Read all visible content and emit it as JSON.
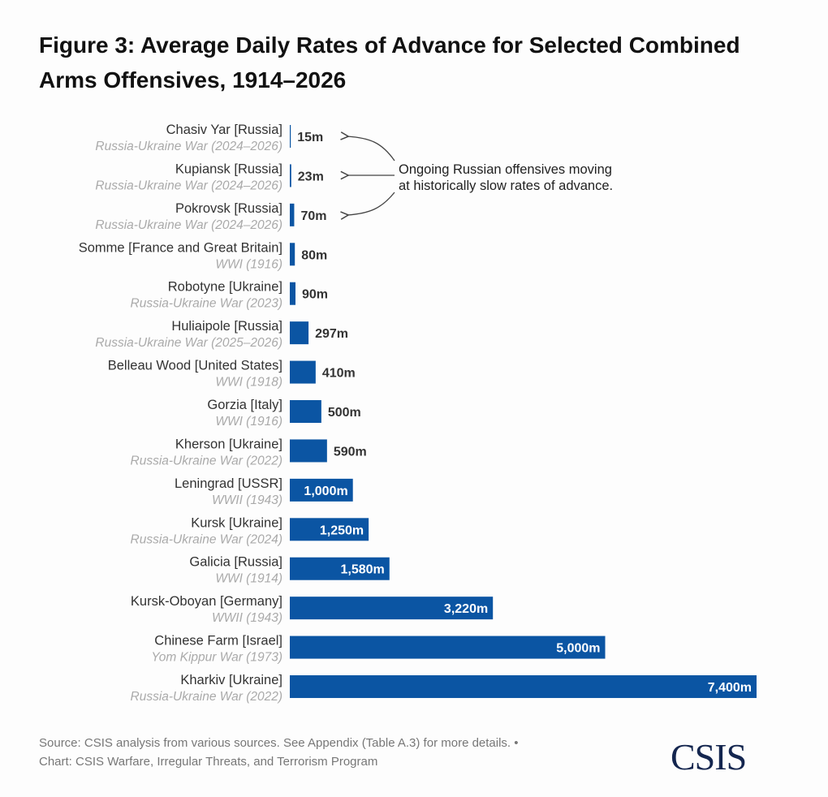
{
  "chart_data": {
    "type": "bar",
    "orientation": "horizontal",
    "title": "Figure 3: Average Daily Rates of Advance for Selected Combined Arms Offensives, 1914–2026",
    "unit": "m",
    "bar_color": "#0b55a3",
    "grid": false,
    "categories": [
      {
        "name": "Chasiv Yar [Russia]",
        "war": "Russia-Ukraine War (2024–2026)",
        "value": 15,
        "label": "15m"
      },
      {
        "name": "Kupiansk [Russia]",
        "war": "Russia-Ukraine War (2024–2026)",
        "value": 23,
        "label": "23m"
      },
      {
        "name": "Pokrovsk [Russia]",
        "war": "Russia-Ukraine War (2024–2026)",
        "value": 70,
        "label": "70m"
      },
      {
        "name": "Somme [France and Great Britain]",
        "war": "WWI (1916)",
        "value": 80,
        "label": "80m"
      },
      {
        "name": "Robotyne [Ukraine]",
        "war": "Russia-Ukraine War (2023)",
        "value": 90,
        "label": "90m"
      },
      {
        "name": "Huliaipole [Russia]",
        "war": "Russia-Ukraine War (2025–2026)",
        "value": 297,
        "label": "297m"
      },
      {
        "name": "Belleau Wood [United States]",
        "war": "WWI (1918)",
        "value": 410,
        "label": "410m"
      },
      {
        "name": "Gorzia [Italy]",
        "war": "WWI (1916)",
        "value": 500,
        "label": "500m"
      },
      {
        "name": "Kherson [Ukraine]",
        "war": "Russia-Ukraine War (2022)",
        "value": 590,
        "label": "590m"
      },
      {
        "name": "Leningrad [USSR]",
        "war": "WWII (1943)",
        "value": 1000,
        "label": "1,000m"
      },
      {
        "name": "Kursk [Ukraine]",
        "war": "Russia-Ukraine War (2024)",
        "value": 1250,
        "label": "1,250m"
      },
      {
        "name": "Galicia [Russia]",
        "war": "WWI (1914)",
        "value": 1580,
        "label": "1,580m"
      },
      {
        "name": "Kursk-Oboyan [Germany]",
        "war": "WWII (1943)",
        "value": 3220,
        "label": "3,220m"
      },
      {
        "name": "Chinese Farm [Israel]",
        "war": "Yom Kippur War (1973)",
        "value": 5000,
        "label": "5,000m"
      },
      {
        "name": "Kharkiv [Ukraine]",
        "war": "Russia-Ukraine War (2022)",
        "value": 7400,
        "label": "7,400m"
      }
    ],
    "xlim": [
      0,
      7400
    ],
    "annotation": {
      "line1": "Ongoing Russian offensives moving",
      "line2": "at historically slow rates of advance.",
      "targets": [
        "Chasiv Yar [Russia]",
        "Kupiansk [Russia]",
        "Pokrovsk [Russia]"
      ]
    }
  },
  "footer": {
    "source_line1": "Source: CSIS analysis from various sources. See Appendix (Table A.3) for more details. •",
    "source_line2": "Chart: CSIS Warfare, Irregular Threats, and Terrorism Program",
    "logo": "CSIS"
  }
}
